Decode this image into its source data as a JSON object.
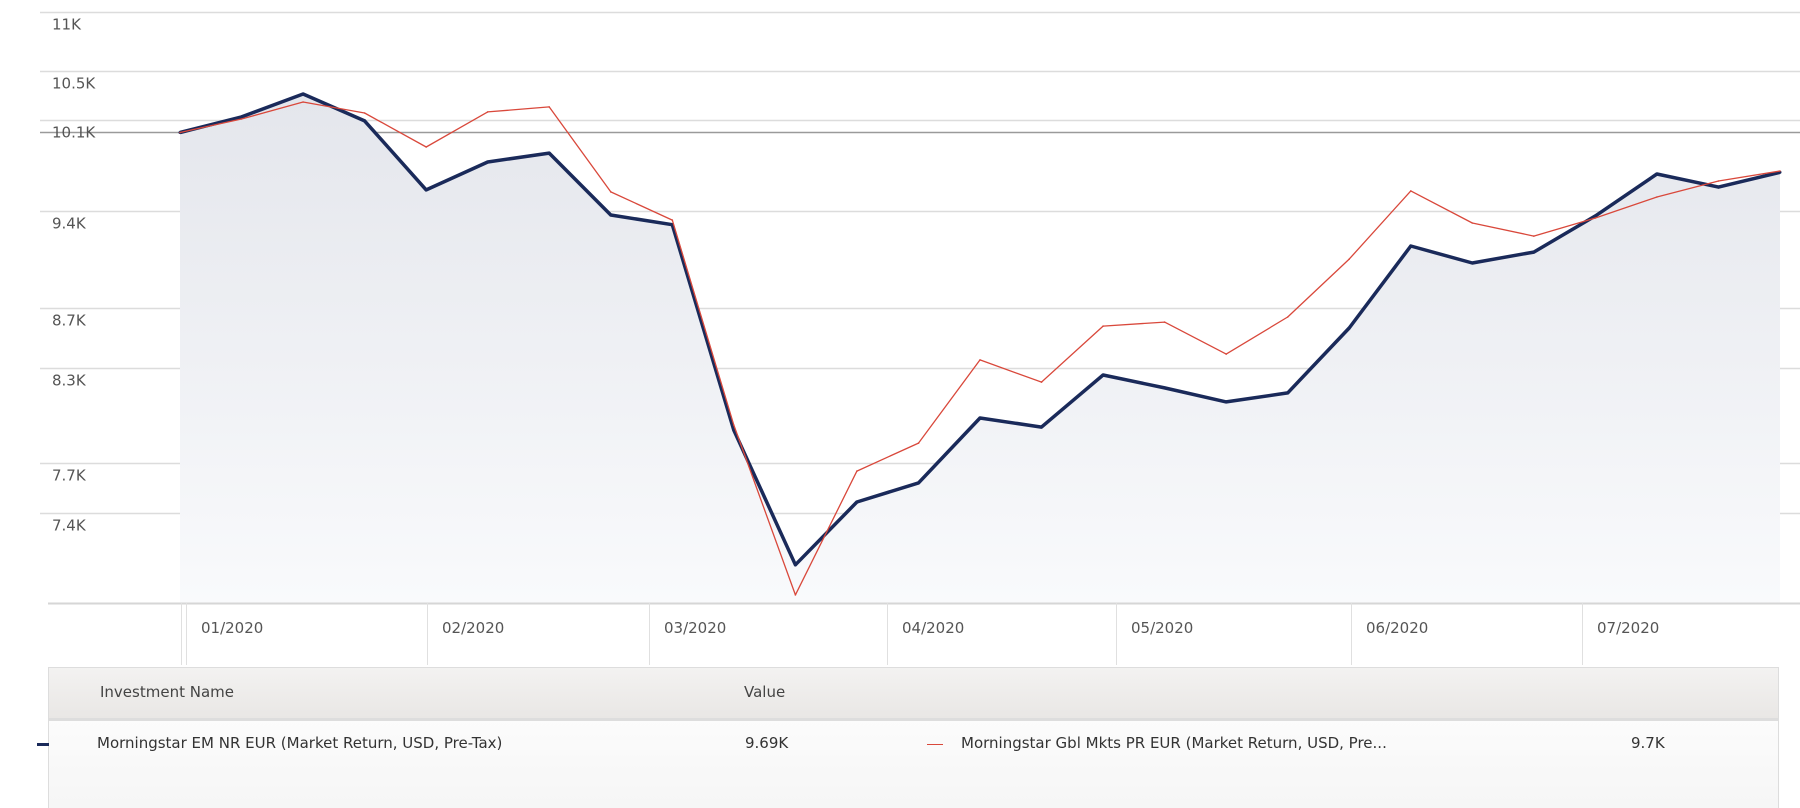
{
  "chart_data": {
    "type": "line",
    "title": "",
    "xlabel": "",
    "ylabel": "",
    "y_scale": "log",
    "ylim": [
      6915,
      11000
    ],
    "y_ticks": [
      {
        "value": 11000,
        "label": "11K"
      },
      {
        "value": 10500,
        "label": "10.5K"
      },
      {
        "value": 10100,
        "label": "10.1K"
      },
      {
        "value": 9400,
        "label": "9.4K"
      },
      {
        "value": 8700,
        "label": "8.7K"
      },
      {
        "value": 8300,
        "label": "8.3K"
      },
      {
        "value": 7700,
        "label": "7.7K"
      },
      {
        "value": 7400,
        "label": "7.4K"
      }
    ],
    "baseline": 10000,
    "x_tick_labels": [
      "01/2020",
      "02/2020",
      "03/2020",
      "04/2020",
      "05/2020",
      "06/2020",
      "07/2020"
    ],
    "x_index": [
      0,
      1,
      2,
      3,
      4,
      5,
      6,
      7,
      8,
      9,
      10,
      11,
      12,
      13,
      14,
      15,
      16,
      17,
      18,
      19,
      20,
      21,
      22,
      23,
      24,
      25,
      26
    ],
    "series": [
      {
        "name": "Morningstar EM NR EUR (Market Return, USD, Pre-Tax)",
        "color": "#1a2a5a",
        "fill": true,
        "values": [
          10000,
          10124,
          10309,
          10092,
          9556,
          9769,
          9838,
          9368,
          9296,
          7902,
          7103,
          7465,
          7579,
          7978,
          7921,
          8254,
          8170,
          8080,
          8138,
          8567,
          9141,
          9019,
          9097,
          9361,
          9677,
          9577,
          9690
        ]
      },
      {
        "name": "Morningstar Gbl Mkts PR EUR (Market Return, USD, Pre-Tax)",
        "color": "#d9483b",
        "fill": false,
        "values": [
          10000,
          10107,
          10244,
          10155,
          9886,
          10164,
          10204,
          9541,
          9330,
          7934,
          6936,
          7650,
          7821,
          8353,
          8208,
          8580,
          8607,
          8392,
          8642,
          9047,
          9548,
          9309,
          9213,
          9346,
          9502,
          9623,
          9700
        ]
      }
    ],
    "grid": true,
    "legend_placement": "bottom"
  },
  "legend": {
    "header_name": "Investment Name",
    "header_value": "Value",
    "items": [
      {
        "name": "Morningstar EM NR EUR (Market Return, USD, Pre-Tax)",
        "value": "9.69K",
        "color": "#1a2a5a"
      },
      {
        "name": "Morningstar Gbl Mkts PR EUR (Market Return, USD, Pre...",
        "value": "9.7K",
        "color": "#d9483b"
      }
    ]
  }
}
